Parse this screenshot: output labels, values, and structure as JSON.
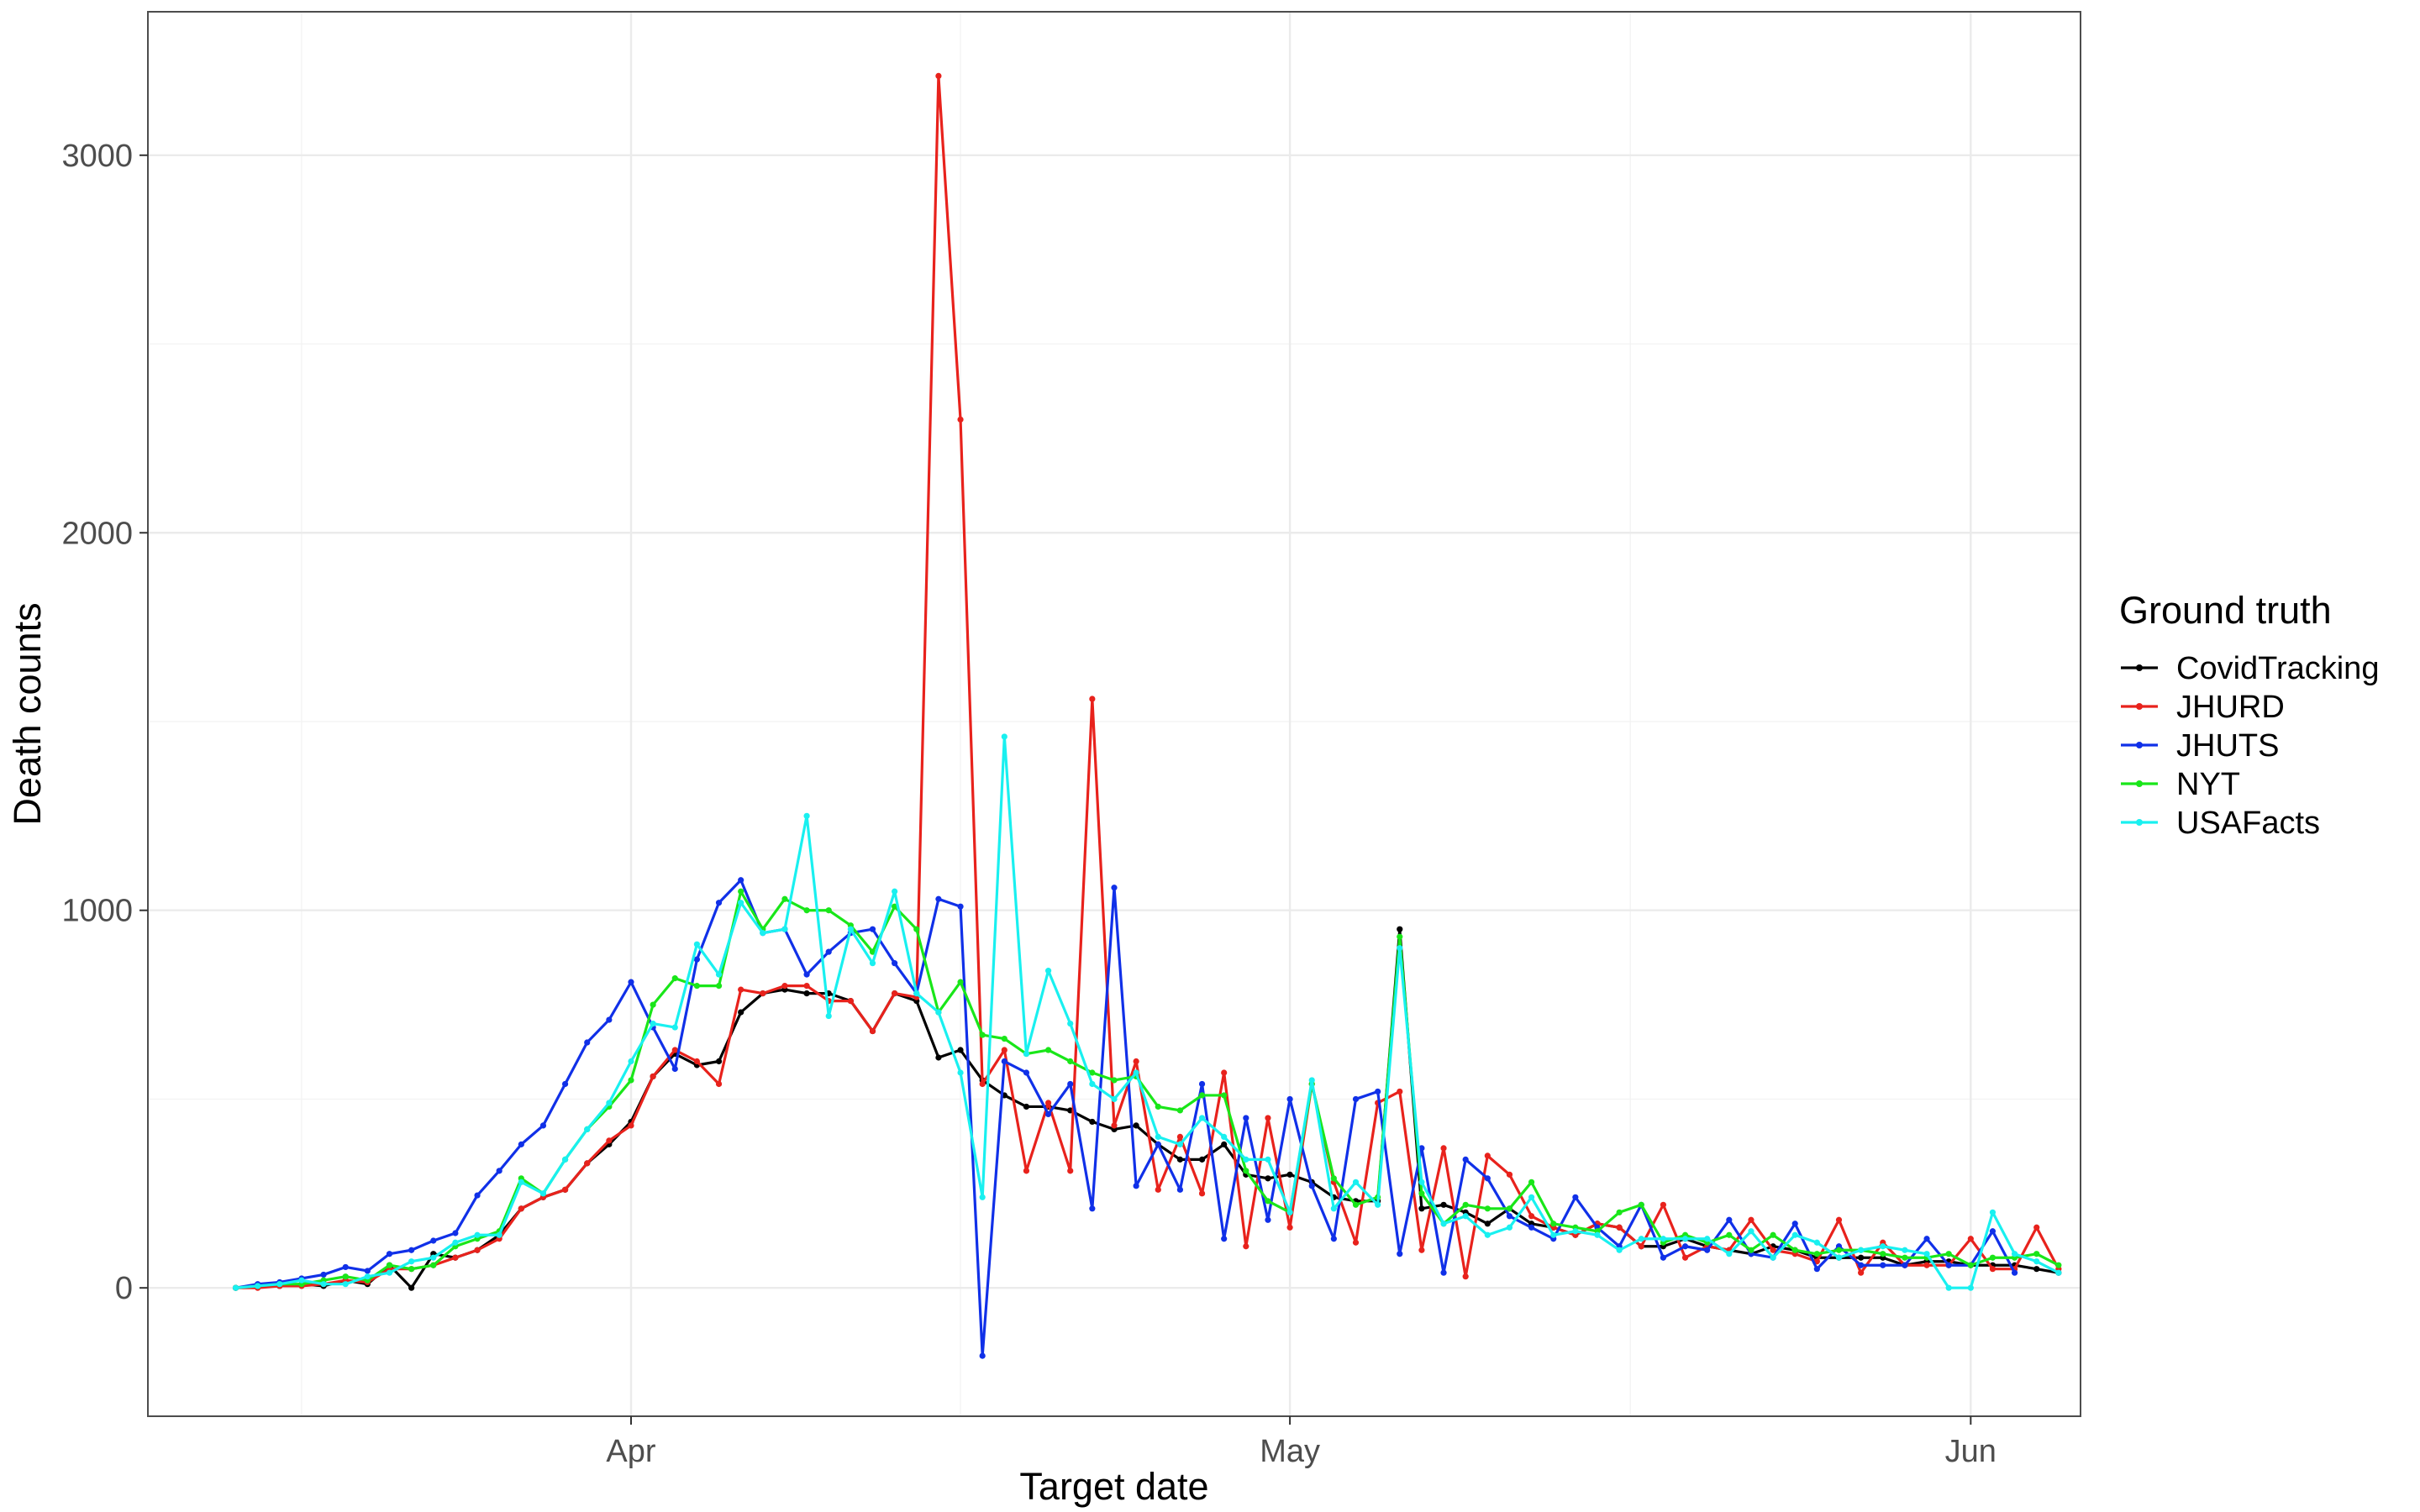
{
  "chart_data": {
    "type": "line",
    "xlabel": "Target date",
    "ylabel": "Death counts",
    "x_start": "2020-03-14",
    "x_end": "2020-06-04",
    "xlim": [
      "2020-03-10",
      "2020-06-06"
    ],
    "ylim": [
      -340,
      3380
    ],
    "x_ticks": [
      {
        "date": "2020-04-01",
        "label": "Apr"
      },
      {
        "date": "2020-05-01",
        "label": "May"
      },
      {
        "date": "2020-06-01",
        "label": "Jun"
      }
    ],
    "y_ticks": [
      0,
      1000,
      2000,
      3000
    ],
    "grid": true,
    "legend": {
      "title": "Ground truth",
      "position": "right"
    },
    "series": [
      {
        "name": "CovidTracking",
        "color": "#000000",
        "values": [
          0,
          3,
          5,
          10,
          5,
          20,
          10,
          60,
          0,
          90,
          80,
          100,
          140,
          210,
          240,
          260,
          330,
          380,
          440,
          560,
          620,
          590,
          600,
          730,
          780,
          790,
          780,
          780,
          760,
          680,
          780,
          760,
          610,
          630,
          550,
          510,
          480,
          480,
          470,
          440,
          420,
          430,
          380,
          340,
          340,
          380,
          300,
          290,
          300,
          280,
          240,
          230,
          230,
          950,
          210,
          220,
          200,
          170,
          210,
          170,
          160,
          140,
          170,
          160,
          110,
          110,
          130,
          110,
          100,
          90,
          110,
          100,
          80,
          80,
          80,
          80,
          60,
          70,
          70,
          60,
          60,
          60,
          50,
          40
        ]
      },
      {
        "name": "JHURD",
        "color": "#e8221c",
        "values": [
          0,
          0,
          5,
          5,
          10,
          20,
          15,
          50,
          50,
          60,
          80,
          100,
          130,
          210,
          240,
          260,
          330,
          390,
          430,
          560,
          630,
          600,
          540,
          790,
          780,
          800,
          800,
          760,
          760,
          680,
          780,
          770,
          3210,
          2300,
          540,
          630,
          310,
          490,
          310,
          1560,
          430,
          600,
          260,
          400,
          250,
          570,
          110,
          450,
          160,
          540,
          280,
          120,
          490,
          520,
          100,
          370,
          30,
          350,
          300,
          190,
          160,
          140,
          170,
          160,
          110,
          220,
          80,
          110,
          100,
          180,
          100,
          90,
          70,
          180,
          40,
          120,
          60,
          60,
          60,
          130,
          50,
          50,
          160,
          50
        ]
      },
      {
        "name": "JHUTS",
        "color": "#1030e8",
        "values": [
          0,
          10,
          15,
          25,
          35,
          55,
          45,
          90,
          100,
          125,
          145,
          245,
          310,
          380,
          430,
          540,
          650,
          710,
          810,
          690,
          580,
          870,
          1020,
          1080,
          940,
          950,
          830,
          890,
          940,
          950,
          860,
          780,
          1030,
          1010,
          -180,
          600,
          570,
          460,
          540,
          210,
          1060,
          270,
          380,
          260,
          540,
          130,
          450,
          180,
          500,
          270,
          130,
          500,
          520,
          90,
          370,
          40,
          340,
          290,
          190,
          160,
          130,
          240,
          160,
          110,
          220,
          80,
          110,
          100,
          180,
          90,
          80,
          170,
          50,
          110,
          60,
          60,
          60,
          130,
          60,
          60,
          150,
          40
        ]
      },
      {
        "name": "NYT",
        "color": "#19e619",
        "values": [
          0,
          5,
          10,
          10,
          20,
          30,
          20,
          60,
          50,
          60,
          110,
          130,
          150,
          290,
          250,
          340,
          420,
          480,
          550,
          750,
          820,
          800,
          800,
          1050,
          950,
          1030,
          1000,
          1000,
          960,
          890,
          1010,
          950,
          730,
          810,
          670,
          660,
          620,
          630,
          600,
          570,
          550,
          560,
          480,
          470,
          510,
          510,
          310,
          230,
          200,
          540,
          290,
          220,
          240,
          930,
          250,
          170,
          220,
          210,
          210,
          280,
          170,
          160,
          150,
          200,
          220,
          120,
          140,
          120,
          140,
          100,
          140,
          100,
          90,
          100,
          100,
          90,
          80,
          80,
          90,
          60,
          80,
          80,
          90,
          60
        ]
      },
      {
        "name": "USAFacts",
        "color": "#19f0f0",
        "values": [
          0,
          5,
          10,
          20,
          10,
          10,
          30,
          40,
          70,
          80,
          120,
          140,
          140,
          280,
          250,
          340,
          420,
          490,
          600,
          700,
          690,
          910,
          830,
          1020,
          940,
          950,
          1250,
          720,
          950,
          860,
          1050,
          780,
          730,
          570,
          240,
          1460,
          620,
          840,
          700,
          540,
          500,
          570,
          400,
          380,
          450,
          400,
          340,
          340,
          200,
          550,
          210,
          280,
          220,
          900,
          280,
          170,
          190,
          140,
          160,
          240,
          140,
          150,
          140,
          100,
          130,
          130,
          130,
          130,
          90,
          150,
          80,
          140,
          120,
          80,
          100,
          110,
          100,
          90,
          0,
          0,
          200,
          90,
          70,
          40
        ]
      }
    ]
  }
}
